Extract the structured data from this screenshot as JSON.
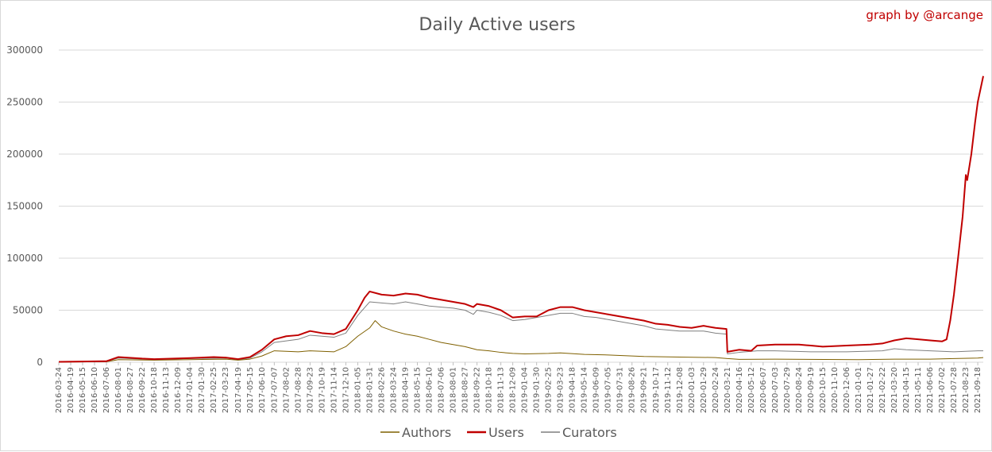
{
  "chart_data": {
    "type": "line",
    "title": "Daily Active users",
    "credit": "graph by @arcange",
    "ylim": [
      0,
      300000
    ],
    "y_ticks": [
      0,
      50000,
      100000,
      150000,
      200000,
      250000,
      300000
    ],
    "x_range": [
      "2016-03-24",
      "2021-09-30"
    ],
    "x_ticks": [
      "2016-03-24",
      "2016-04-19",
      "2016-05-15",
      "2016-06-10",
      "2016-07-06",
      "2016-08-01",
      "2016-08-27",
      "2016-09-22",
      "2016-10-18",
      "2016-11-13",
      "2016-12-09",
      "2017-01-04",
      "2017-01-30",
      "2017-02-25",
      "2017-03-23",
      "2017-04-19",
      "2017-05-15",
      "2017-06-10",
      "2017-07-07",
      "2017-08-02",
      "2017-08-28",
      "2017-09-23",
      "2017-10-19",
      "2017-11-14",
      "2017-12-10",
      "2018-01-05",
      "2018-01-31",
      "2018-02-26",
      "2018-03-24",
      "2018-04-19",
      "2018-05-15",
      "2018-06-10",
      "2018-07-06",
      "2018-08-01",
      "2018-08-27",
      "2018-09-22",
      "2018-10-18",
      "2018-11-13",
      "2018-12-09",
      "2019-01-04",
      "2019-01-30",
      "2019-02-25",
      "2019-03-23",
      "2019-04-18",
      "2019-05-14",
      "2019-06-09",
      "2019-07-05",
      "2019-07-31",
      "2019-08-26",
      "2019-09-21",
      "2019-10-17",
      "2019-11-12",
      "2019-12-08",
      "2020-01-03",
      "2020-01-29",
      "2020-02-24",
      "2020-03-21",
      "2020-04-16",
      "2020-05-12",
      "2020-06-07",
      "2020-07-03",
      "2020-07-29",
      "2020-08-24",
      "2020-09-19",
      "2020-10-15",
      "2020-11-10",
      "2020-12-06",
      "2021-01-01",
      "2021-01-27",
      "2021-02-22",
      "2021-03-20",
      "2021-04-15",
      "2021-05-11",
      "2021-06-06",
      "2021-07-02",
      "2021-07-28",
      "2021-08-23",
      "2021-09-18"
    ],
    "grid": "horizontal",
    "legend_position": "bottom",
    "series": [
      {
        "name": "Authors",
        "color": "#7f6000",
        "points": [
          [
            "2016-03-24",
            200
          ],
          [
            "2016-07-06",
            500
          ],
          [
            "2016-08-01",
            2500
          ],
          [
            "2016-10-18",
            2000
          ],
          [
            "2017-01-04",
            2500
          ],
          [
            "2017-03-23",
            3000
          ],
          [
            "2017-04-19",
            2000
          ],
          [
            "2017-05-15",
            3000
          ],
          [
            "2017-06-10",
            6000
          ],
          [
            "2017-07-07",
            11000
          ],
          [
            "2017-08-28",
            10000
          ],
          [
            "2017-09-23",
            11000
          ],
          [
            "2017-11-14",
            10000
          ],
          [
            "2017-12-10",
            15000
          ],
          [
            "2018-01-05",
            25000
          ],
          [
            "2018-01-31",
            33000
          ],
          [
            "2018-02-12",
            40000
          ],
          [
            "2018-02-26",
            34000
          ],
          [
            "2018-03-24",
            30000
          ],
          [
            "2018-04-19",
            27000
          ],
          [
            "2018-05-15",
            25000
          ],
          [
            "2018-06-10",
            22000
          ],
          [
            "2018-07-06",
            19000
          ],
          [
            "2018-08-01",
            17000
          ],
          [
            "2018-08-27",
            15000
          ],
          [
            "2018-09-22",
            12000
          ],
          [
            "2018-10-18",
            11000
          ],
          [
            "2018-11-13",
            9500
          ],
          [
            "2018-12-09",
            8500
          ],
          [
            "2019-01-04",
            8000
          ],
          [
            "2019-02-25",
            8500
          ],
          [
            "2019-03-23",
            9000
          ],
          [
            "2019-05-14",
            7500
          ],
          [
            "2019-07-05",
            7000
          ],
          [
            "2019-08-26",
            6000
          ],
          [
            "2019-09-21",
            5500
          ],
          [
            "2019-12-08",
            5000
          ],
          [
            "2020-02-24",
            4500
          ],
          [
            "2020-03-21",
            3500
          ],
          [
            "2020-04-16",
            2800
          ],
          [
            "2020-07-03",
            3000
          ],
          [
            "2021-01-01",
            2500
          ],
          [
            "2021-03-20",
            3000
          ],
          [
            "2021-06-06",
            3000
          ],
          [
            "2021-07-28",
            3500
          ],
          [
            "2021-09-18",
            4000
          ],
          [
            "2021-09-30",
            4500
          ]
        ]
      },
      {
        "name": "Users",
        "color": "#c00000",
        "points": [
          [
            "2016-03-24",
            400
          ],
          [
            "2016-07-06",
            1000
          ],
          [
            "2016-08-01",
            5000
          ],
          [
            "2016-09-22",
            3500
          ],
          [
            "2016-10-18",
            3000
          ],
          [
            "2017-01-04",
            4000
          ],
          [
            "2017-02-25",
            5000
          ],
          [
            "2017-03-23",
            4500
          ],
          [
            "2017-04-19",
            3000
          ],
          [
            "2017-05-15",
            5000
          ],
          [
            "2017-06-10",
            12000
          ],
          [
            "2017-07-07",
            22000
          ],
          [
            "2017-08-02",
            25000
          ],
          [
            "2017-08-28",
            26000
          ],
          [
            "2017-09-23",
            30000
          ],
          [
            "2017-10-19",
            28000
          ],
          [
            "2017-11-14",
            27000
          ],
          [
            "2017-12-10",
            32000
          ],
          [
            "2018-01-05",
            50000
          ],
          [
            "2018-01-20",
            62000
          ],
          [
            "2018-01-31",
            68000
          ],
          [
            "2018-02-26",
            65000
          ],
          [
            "2018-03-24",
            64000
          ],
          [
            "2018-04-19",
            66000
          ],
          [
            "2018-05-15",
            65000
          ],
          [
            "2018-06-10",
            62000
          ],
          [
            "2018-07-06",
            60000
          ],
          [
            "2018-08-01",
            58000
          ],
          [
            "2018-08-27",
            56000
          ],
          [
            "2018-09-14",
            53000
          ],
          [
            "2018-09-22",
            56000
          ],
          [
            "2018-10-18",
            54000
          ],
          [
            "2018-11-13",
            50000
          ],
          [
            "2018-12-09",
            43000
          ],
          [
            "2019-01-04",
            44000
          ],
          [
            "2019-01-30",
            44000
          ],
          [
            "2019-02-25",
            50000
          ],
          [
            "2019-03-23",
            53000
          ],
          [
            "2019-04-18",
            53000
          ],
          [
            "2019-05-14",
            50000
          ],
          [
            "2019-06-09",
            48000
          ],
          [
            "2019-07-05",
            46000
          ],
          [
            "2019-07-31",
            44000
          ],
          [
            "2019-08-26",
            42000
          ],
          [
            "2019-09-21",
            40000
          ],
          [
            "2019-10-17",
            37000
          ],
          [
            "2019-11-12",
            36000
          ],
          [
            "2019-12-08",
            34000
          ],
          [
            "2020-01-03",
            33000
          ],
          [
            "2020-01-29",
            35000
          ],
          [
            "2020-02-24",
            33000
          ],
          [
            "2020-03-19",
            32000
          ],
          [
            "2020-03-21",
            10000
          ],
          [
            "2020-04-16",
            12000
          ],
          [
            "2020-05-12",
            11000
          ],
          [
            "2020-05-25",
            16000
          ],
          [
            "2020-07-03",
            17000
          ],
          [
            "2020-08-24",
            17000
          ],
          [
            "2020-09-19",
            16000
          ],
          [
            "2020-10-15",
            15000
          ],
          [
            "2020-12-06",
            16000
          ],
          [
            "2021-01-27",
            17000
          ],
          [
            "2021-02-22",
            18000
          ],
          [
            "2021-03-20",
            21000
          ],
          [
            "2021-04-15",
            23000
          ],
          [
            "2021-05-11",
            22000
          ],
          [
            "2021-06-06",
            21000
          ],
          [
            "2021-07-02",
            20000
          ],
          [
            "2021-07-12",
            22000
          ],
          [
            "2021-07-20",
            40000
          ],
          [
            "2021-07-28",
            65000
          ],
          [
            "2021-08-06",
            100000
          ],
          [
            "2021-08-16",
            140000
          ],
          [
            "2021-08-23",
            180000
          ],
          [
            "2021-08-26",
            175000
          ],
          [
            "2021-09-04",
            200000
          ],
          [
            "2021-09-12",
            230000
          ],
          [
            "2021-09-18",
            250000
          ],
          [
            "2021-09-30",
            275000
          ]
        ]
      },
      {
        "name": "Curators",
        "color": "#7f7f7f",
        "points": [
          [
            "2016-03-24",
            300
          ],
          [
            "2016-07-06",
            800
          ],
          [
            "2016-08-01",
            4000
          ],
          [
            "2016-10-18",
            2500
          ],
          [
            "2017-01-04",
            3500
          ],
          [
            "2017-03-23",
            4000
          ],
          [
            "2017-04-19",
            2500
          ],
          [
            "2017-05-15",
            4000
          ],
          [
            "2017-06-10",
            10000
          ],
          [
            "2017-07-07",
            19000
          ],
          [
            "2017-08-28",
            22000
          ],
          [
            "2017-09-23",
            26000
          ],
          [
            "2017-11-14",
            24000
          ],
          [
            "2017-12-10",
            28000
          ],
          [
            "2018-01-05",
            45000
          ],
          [
            "2018-01-31",
            58000
          ],
          [
            "2018-02-26",
            57000
          ],
          [
            "2018-03-24",
            56000
          ],
          [
            "2018-04-19",
            58000
          ],
          [
            "2018-05-15",
            56000
          ],
          [
            "2018-06-10",
            54000
          ],
          [
            "2018-07-06",
            53000
          ],
          [
            "2018-08-01",
            52000
          ],
          [
            "2018-08-27",
            50000
          ],
          [
            "2018-09-14",
            46000
          ],
          [
            "2018-09-22",
            50000
          ],
          [
            "2018-10-18",
            48000
          ],
          [
            "2018-11-13",
            45000
          ],
          [
            "2018-12-09",
            40000
          ],
          [
            "2019-01-04",
            41000
          ],
          [
            "2019-02-25",
            45000
          ],
          [
            "2019-03-23",
            47000
          ],
          [
            "2019-04-18",
            47000
          ],
          [
            "2019-05-14",
            44000
          ],
          [
            "2019-06-09",
            43000
          ],
          [
            "2019-07-05",
            41000
          ],
          [
            "2019-08-26",
            37000
          ],
          [
            "2019-09-21",
            35000
          ],
          [
            "2019-10-17",
            32000
          ],
          [
            "2019-12-08",
            30000
          ],
          [
            "2020-01-29",
            30000
          ],
          [
            "2020-02-24",
            28000
          ],
          [
            "2020-03-19",
            27000
          ],
          [
            "2020-03-21",
            8000
          ],
          [
            "2020-04-16",
            9500
          ],
          [
            "2020-05-25",
            11000
          ],
          [
            "2020-07-03",
            11000
          ],
          [
            "2020-09-19",
            10000
          ],
          [
            "2020-12-06",
            10000
          ],
          [
            "2021-02-22",
            11000
          ],
          [
            "2021-03-20",
            13000
          ],
          [
            "2021-04-15",
            12000
          ],
          [
            "2021-06-06",
            11000
          ],
          [
            "2021-07-28",
            10000
          ],
          [
            "2021-09-18",
            11000
          ],
          [
            "2021-09-30",
            11000
          ]
        ]
      }
    ]
  }
}
